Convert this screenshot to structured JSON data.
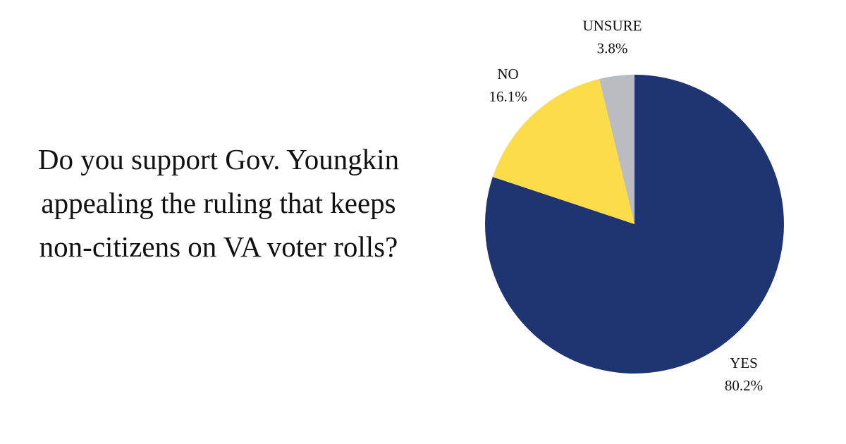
{
  "chart_data": {
    "type": "pie",
    "title": "Do you support Gov. Youngkin appealing the ruling that keeps non-citizens on VA voter rolls?",
    "categories": [
      "YES",
      "NO",
      "UNSURE"
    ],
    "values": [
      80.2,
      16.1,
      3.8
    ],
    "value_labels": [
      "80.2%",
      "16.1%",
      "3.8%"
    ],
    "colors": [
      "#1f3572",
      "#fddc49",
      "#bbbcc1"
    ]
  }
}
